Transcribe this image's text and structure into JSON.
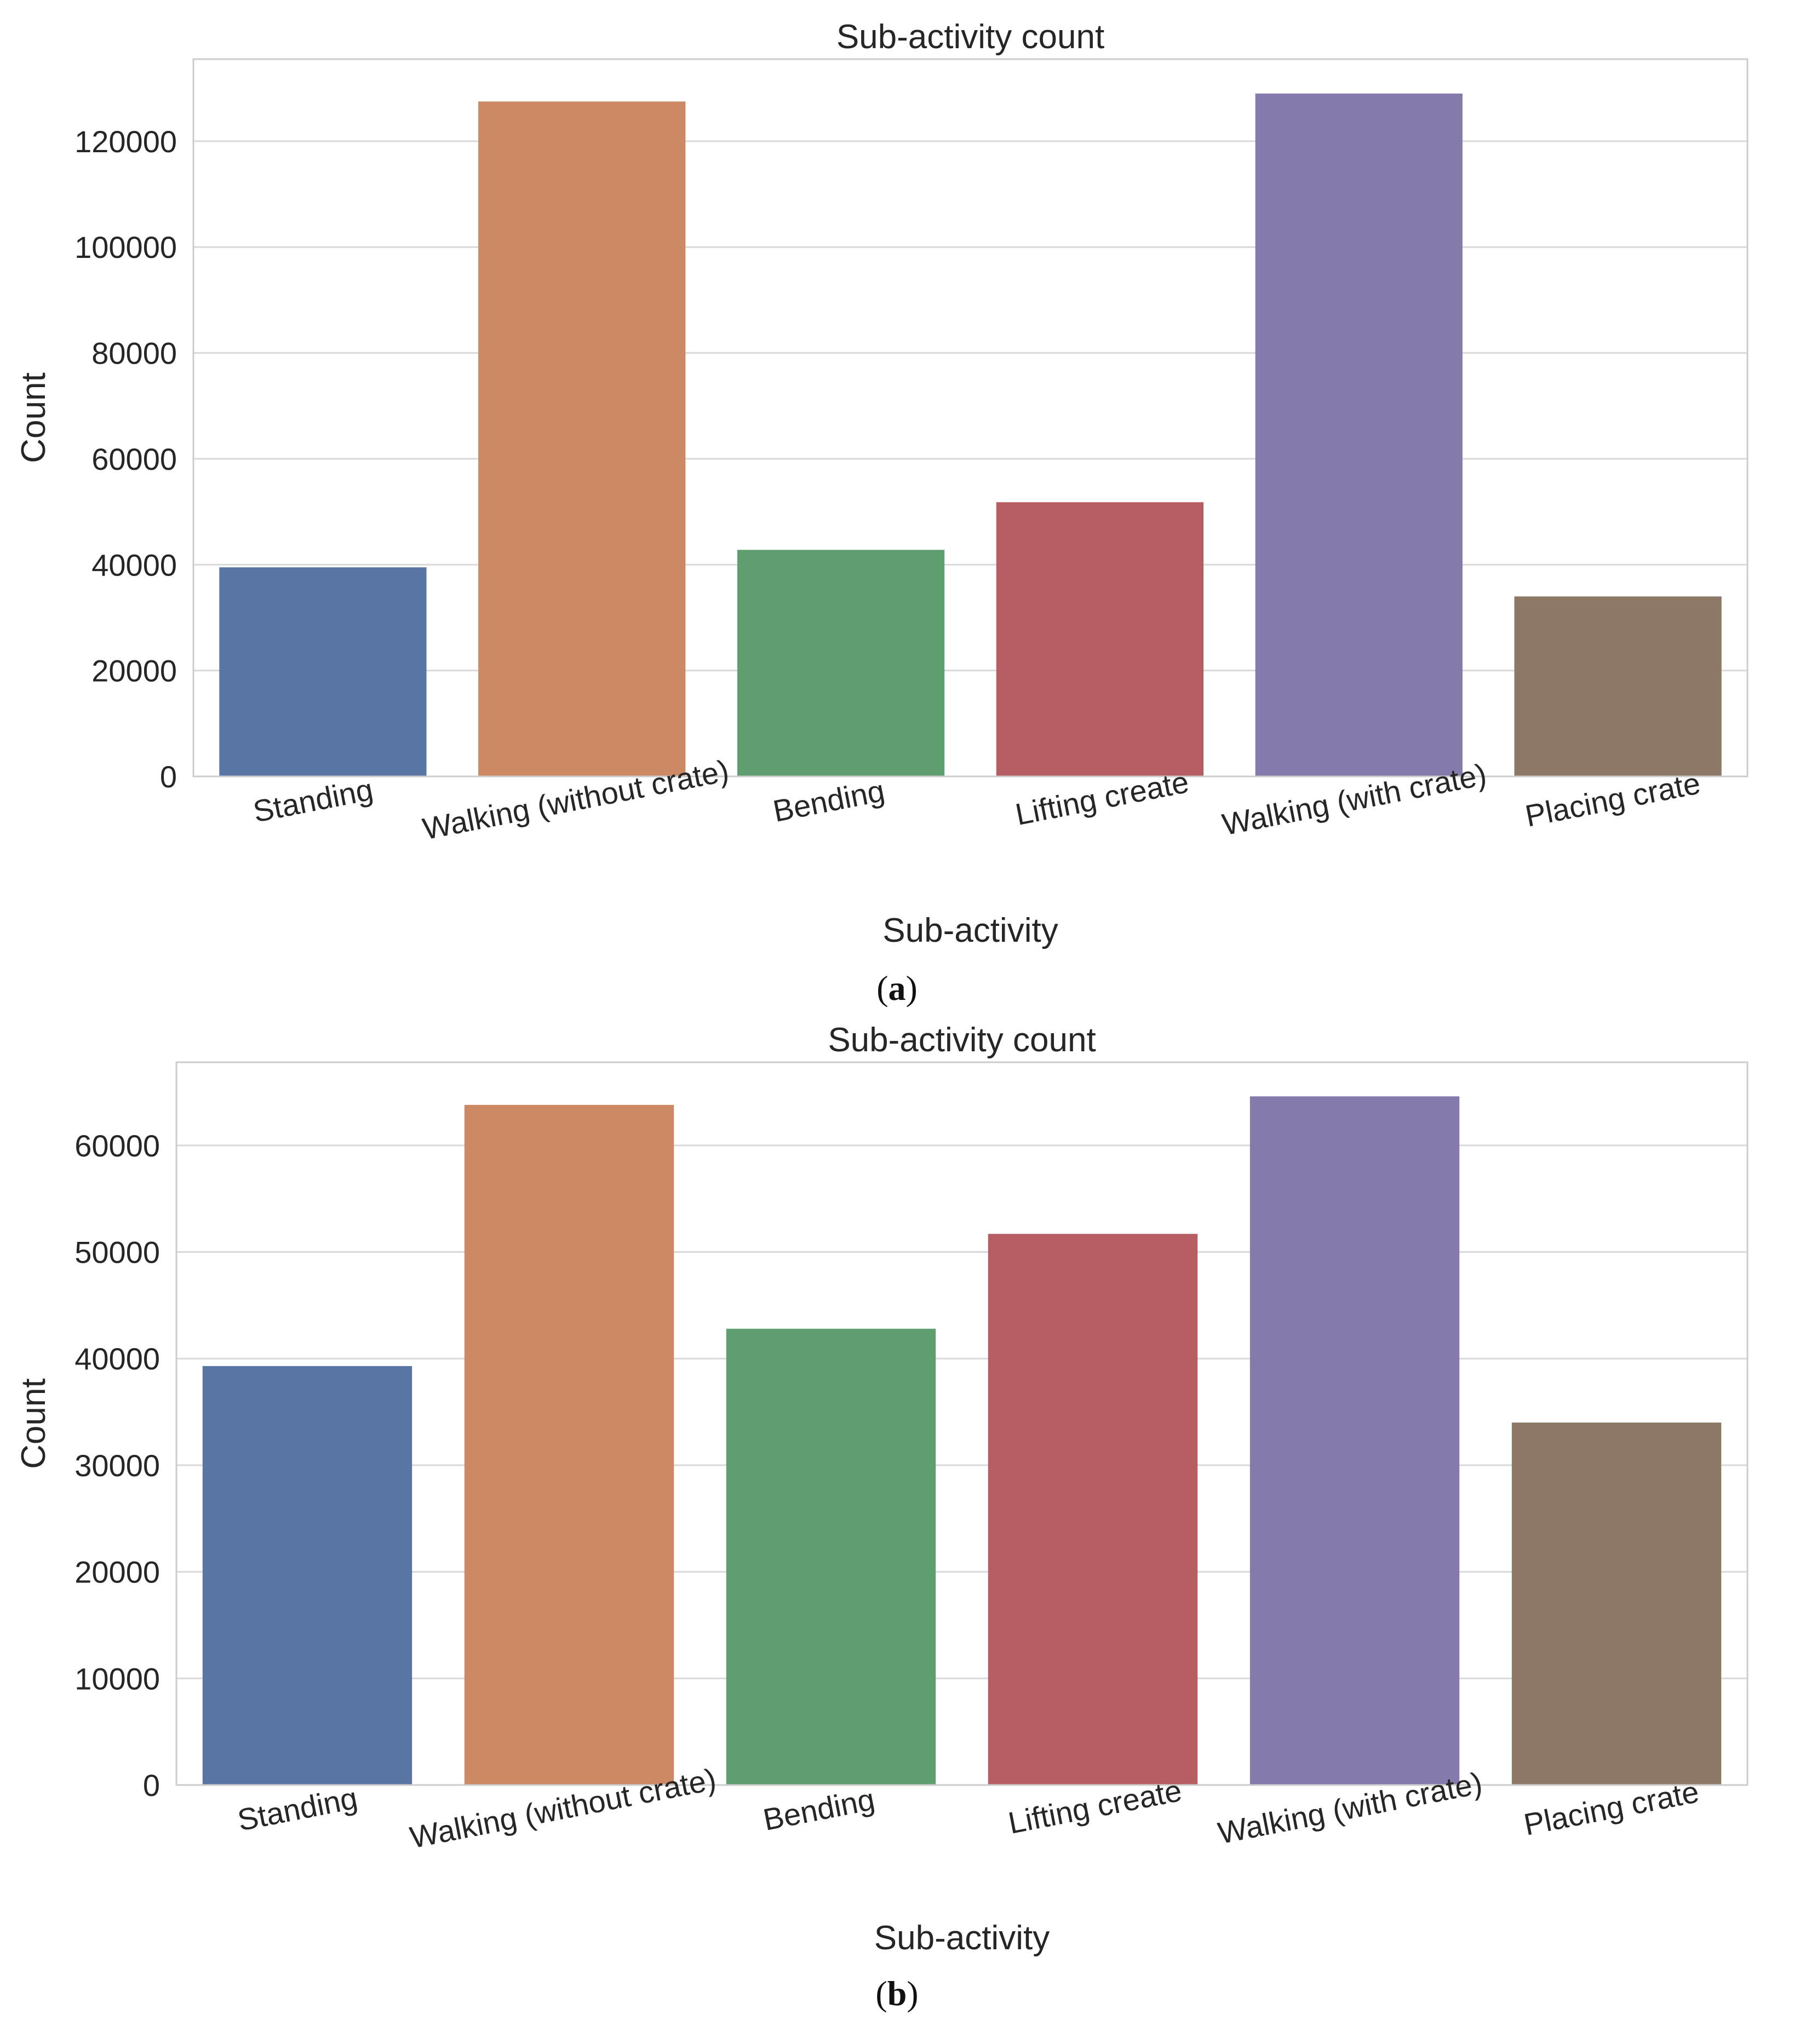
{
  "colors": {
    "grid": "#d9d9d9",
    "frame": "#cccccc",
    "text": "#262626",
    "background": "#ffffff"
  },
  "panel_labels": {
    "a": "a",
    "b": "b"
  },
  "chart_data": [
    {
      "id": "a",
      "type": "bar",
      "title": "Sub-activity count",
      "xlabel": "Sub-activity",
      "ylabel": "Count",
      "categories": [
        "Standing",
        "Walking (without crate)",
        "Bending",
        "Lifting create",
        "Walking (with crate)",
        "Placing crate"
      ],
      "values": [
        39500,
        127500,
        42800,
        51800,
        129000,
        34000
      ],
      "colors": [
        "#5975a4",
        "#cc8963",
        "#5f9e6e",
        "#b55d60",
        "#857aab",
        "#8d7866"
      ],
      "yticks": [
        0,
        20000,
        40000,
        60000,
        80000,
        100000,
        120000
      ],
      "ylim": [
        0,
        135500
      ],
      "grid": true
    },
    {
      "id": "b",
      "type": "bar",
      "title": "Sub-activity count",
      "xlabel": "Sub-activity",
      "ylabel": "Count",
      "categories": [
        "Standing",
        "Walking (without crate)",
        "Bending",
        "Lifting create",
        "Walking (with crate)",
        "Placing crate"
      ],
      "values": [
        39300,
        63800,
        42800,
        51700,
        64600,
        34000
      ],
      "colors": [
        "#5975a4",
        "#cc8963",
        "#5f9e6e",
        "#b55d60",
        "#857aab",
        "#8d7866"
      ],
      "yticks": [
        0,
        10000,
        20000,
        30000,
        40000,
        50000,
        60000
      ],
      "ylim": [
        0,
        67800
      ],
      "grid": true
    }
  ]
}
